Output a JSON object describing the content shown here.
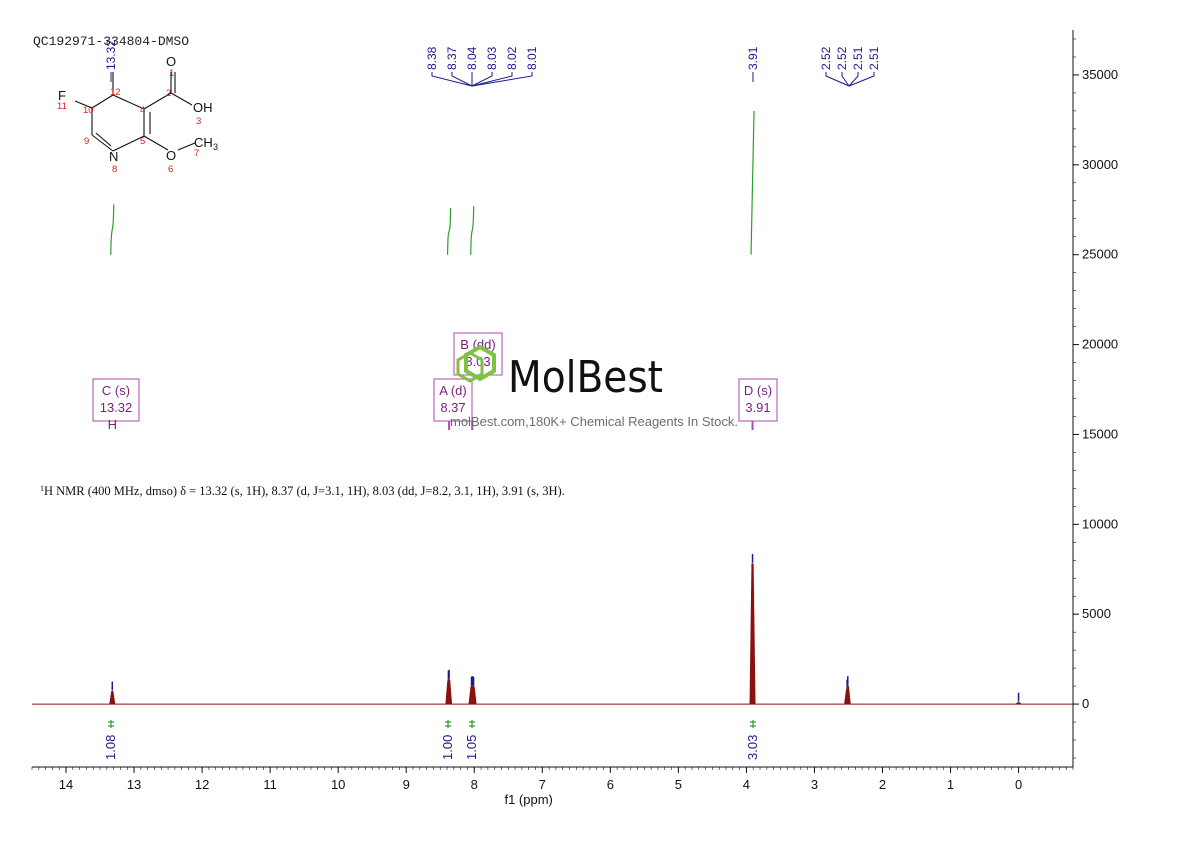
{
  "sample_id": "QC192971-334804-DMSO",
  "description": {
    "prefix": "1",
    "text": "H NMR (400 MHz, dmso) δ = 13.32 (s, 1H), 8.37 (d, J=3.1, 1H), 8.03 (dd, J=8.2, 3.1, 1H), 3.91 (s, 3H)."
  },
  "watermark": {
    "brand": "MolBest",
    "tagline": "molBest.com,180K+ Chemical Reagents In Stock."
  },
  "molecule": {
    "atoms": [
      {
        "text": "O",
        "num": "1"
      },
      {
        "text": "OH",
        "num": "3"
      },
      {
        "text": "N",
        "num": "8"
      },
      {
        "text": "O",
        "num": "6"
      },
      {
        "text": "CH",
        "num": "7"
      },
      {
        "text": "3",
        "num": ""
      },
      {
        "text": "F",
        "num": "11"
      },
      {
        "text": "",
        "num": "2"
      },
      {
        "text": "",
        "num": "4"
      },
      {
        "text": "",
        "num": "5"
      },
      {
        "text": "",
        "num": "9"
      },
      {
        "text": "",
        "num": "10"
      },
      {
        "text": "",
        "num": "12"
      }
    ]
  },
  "colors": {
    "spectrum": "#8b1010",
    "integral": "#2ca02c",
    "peak_label": "#1a1a8c",
    "assignment": "#b04ab0",
    "axis": "#111111",
    "logo_hex": "#7dc242"
  },
  "chart_data": {
    "type": "line",
    "xlabel": "f1 (ppm)",
    "ylabel": "",
    "xlim": [
      14.5,
      -0.8
    ],
    "ylim": [
      -3500,
      37500
    ],
    "x_ticks": [
      14,
      13,
      12,
      11,
      10,
      9,
      8,
      7,
      6,
      5,
      4,
      3,
      2,
      1,
      0
    ],
    "y_ticks": [
      0,
      5000,
      10000,
      15000,
      20000,
      25000,
      30000,
      35000
    ],
    "peaks": [
      {
        "ppm": 13.32,
        "height": 700
      },
      {
        "ppm": 8.38,
        "height": 1300
      },
      {
        "ppm": 8.37,
        "height": 1350
      },
      {
        "ppm": 8.04,
        "height": 950
      },
      {
        "ppm": 8.03,
        "height": 1000
      },
      {
        "ppm": 8.02,
        "height": 980
      },
      {
        "ppm": 8.01,
        "height": 950
      },
      {
        "ppm": 3.91,
        "height": 7800
      },
      {
        "ppm": 2.52,
        "height": 800
      },
      {
        "ppm": 2.51,
        "height": 1000
      },
      {
        "ppm": 0.0,
        "height": 80
      }
    ],
    "peak_labels": [
      {
        "group": "a",
        "values": [
          "13.32"
        ]
      },
      {
        "group": "b",
        "values": [
          "8.38",
          "8.37",
          "8.04",
          "8.03",
          "8.02",
          "8.01"
        ]
      },
      {
        "group": "c",
        "values": [
          "3.91"
        ]
      },
      {
        "group": "d",
        "values": [
          "2.52",
          "2.52",
          "2.51",
          "2.51"
        ]
      }
    ],
    "integrals": [
      {
        "ppm": 13.32,
        "value": "1.08"
      },
      {
        "ppm": 8.37,
        "value": "1.00"
      },
      {
        "ppm": 8.03,
        "value": "1.05"
      },
      {
        "ppm": 3.91,
        "value": "3.03"
      }
    ],
    "integral_curves": [
      {
        "ppm": 13.32,
        "from": 25000,
        "to": 27800
      },
      {
        "ppm": 8.37,
        "from": 25000,
        "to": 27600
      },
      {
        "ppm": 8.03,
        "from": 25000,
        "to": 27700
      },
      {
        "ppm": 3.91,
        "from": 25000,
        "to": 33000
      }
    ],
    "assignments": [
      {
        "ppm": 13.32,
        "label": "C (s)",
        "shift": "13.32",
        "atom": "H"
      },
      {
        "ppm": 8.37,
        "label": "A (d)",
        "shift": "8.37",
        "atom": ""
      },
      {
        "ppm": 8.03,
        "label": "B (dd)",
        "shift": "8.03",
        "atom": ""
      },
      {
        "ppm": 3.91,
        "label": "D (s)",
        "shift": "3.91",
        "atom": ""
      }
    ]
  }
}
